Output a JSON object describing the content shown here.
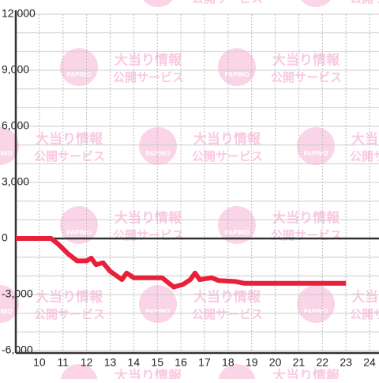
{
  "chart_data": {
    "type": "line",
    "x": [
      9,
      10.5,
      10.8,
      11.2,
      11.6,
      12,
      12.2,
      12.4,
      12.7,
      13,
      13.5,
      13.7,
      14,
      15.2,
      15.7,
      16.1,
      16.4,
      16.6,
      16.8,
      17.3,
      17.6,
      18.3,
      18.7,
      23
    ],
    "series": [
      {
        "color": "#e8203a",
        "values": [
          0,
          0,
          -300,
          -800,
          -1200,
          -1200,
          -1050,
          -1400,
          -1300,
          -1750,
          -2200,
          -1850,
          -2100,
          -2100,
          -2600,
          -2450,
          -2200,
          -1850,
          -2200,
          -2100,
          -2250,
          -2300,
          -2400,
          -2400
        ]
      }
    ],
    "xlim": [
      9,
      24.4
    ],
    "xticks": [
      10,
      11,
      12,
      13,
      14,
      15,
      16,
      17,
      18,
      19,
      20,
      21,
      22,
      23,
      24
    ],
    "ylim": [
      -6000,
      12000
    ],
    "yticks": [
      {
        "value": 12000,
        "label": "12,000"
      },
      {
        "value": 9000,
        "label": "9,000"
      },
      {
        "value": 6000,
        "label": "6,000"
      },
      {
        "value": 3000,
        "label": "3,000"
      },
      0,
      {
        "value": -3000,
        "label": "-3,000"
      },
      {
        "value": -6000,
        "label": "-6,000"
      }
    ],
    "y_minor_ticks": [
      -5000,
      -4000,
      -2000,
      -1000,
      1000,
      2000,
      4000,
      5000,
      7000,
      8000,
      10000,
      11000
    ],
    "grid": true,
    "watermark": {
      "line1": "大当り情報",
      "line2": "公開サービス",
      "logo": "PAPIMO"
    }
  }
}
